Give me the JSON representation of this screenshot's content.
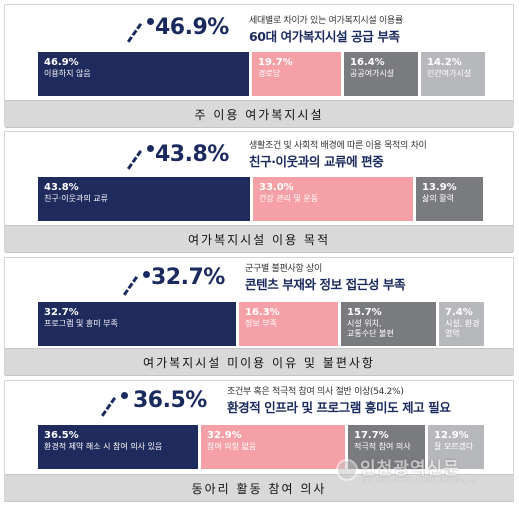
{
  "panels": [
    {
      "percent": "46.9%",
      "subtitle": "세대별로 차이가 있는 여가복지시설 이용률",
      "headline": "60대 여가복지시설 공급 부족",
      "footer": "주 이용 여가복지시설",
      "bars": [
        {
          "value": "46.9%",
          "label": "이용하지 않음"
        },
        {
          "value": "19.7%",
          "label": "경로당"
        },
        {
          "value": "16.4%",
          "label": "공공여가시설"
        },
        {
          "value": "14.2%",
          "label": "민간여가시설"
        }
      ]
    },
    {
      "percent": "43.8%",
      "subtitle": "생활조건 및 사회적 배경에 따른 이용 목적의 차이",
      "headline": "친구·이웃과의 교류에 편중",
      "footer": "여가복지시설 이용 목적",
      "bars": [
        {
          "value": "43.8%",
          "label": "친구·이웃과의 교류"
        },
        {
          "value": "33.0%",
          "label": "건강 관리 및 운동"
        },
        {
          "value": "13.9%",
          "label": "삶의 활력"
        }
      ]
    },
    {
      "percent": "32.7%",
      "subtitle": "군구별 불편사항 상이",
      "headline": "콘텐츠 부재와 정보 접근성 부족",
      "footer": "여가복지시설 미이용 이유 및 불편사항",
      "bars": [
        {
          "value": "32.7%",
          "label": "프로그램 및 흥미 부족"
        },
        {
          "value": "16.3%",
          "label": "정보 부족"
        },
        {
          "value": "15.7%",
          "label": "시설 위치,\n교통수단 불편"
        },
        {
          "value": "7.4%",
          "label": "시설, 환경 열악"
        }
      ]
    },
    {
      "percent": "36.5%",
      "subtitle": "조건부 혹은 적극적 참여 의사 절반 이상(54.2%)",
      "headline": "환경적 인프라 및 프로그램 흥미도 제고 필요",
      "footer": "동아리 활동 참여 의사",
      "bars": [
        {
          "value": "36.5%",
          "label": "환경적 제약 해소 시 참여 의사 있음"
        },
        {
          "value": "32.9%",
          "label": "참여 의향 없음"
        },
        {
          "value": "17.7%",
          "label": "적극적 참여 의사"
        },
        {
          "value": "12.9%",
          "label": "잘 모르겠다"
        }
      ]
    }
  ],
  "watermark": {
    "title": "인천광역신문",
    "subtitle": "Incheon Metropolitan newspaper"
  },
  "colors": {
    "navy": "#1f2a5d",
    "pink": "#f4a0a6",
    "grey": "#7a7b7f",
    "light_grey": "#b7b8bb"
  },
  "chart_data": [
    {
      "type": "bar",
      "title": "주 이용 여가복지시설",
      "categories": [
        "이용하지 않음",
        "경로당",
        "공공여가시설",
        "민간여가시설"
      ],
      "values": [
        46.9,
        19.7,
        16.4,
        14.2
      ]
    },
    {
      "type": "bar",
      "title": "여가복지시설 이용 목적",
      "categories": [
        "친구·이웃과의 교류",
        "건강 관리 및 운동",
        "삶의 활력"
      ],
      "values": [
        43.8,
        33.0,
        13.9
      ]
    },
    {
      "type": "bar",
      "title": "여가복지시설 미이용 이유 및 불편사항",
      "categories": [
        "프로그램 및 흥미 부족",
        "정보 부족",
        "시설 위치, 교통수단 불편",
        "시설, 환경 열악"
      ],
      "values": [
        32.7,
        16.3,
        15.7,
        7.4
      ]
    },
    {
      "type": "bar",
      "title": "동아리 활동 참여 의사",
      "categories": [
        "환경적 제약 해소 시 참여 의사 있음",
        "참여 의향 없음",
        "적극적 참여 의사",
        "잘 모르겠다"
      ],
      "values": [
        36.5,
        32.9,
        17.7,
        12.9
      ]
    }
  ]
}
